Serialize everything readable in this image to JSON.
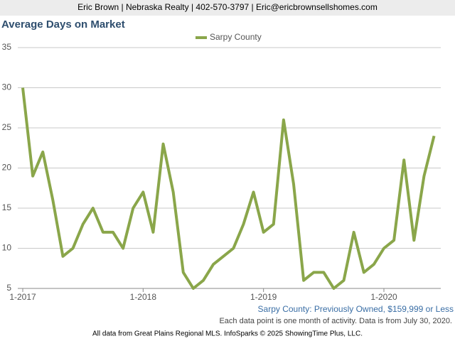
{
  "header": "Eric Brown | Nebraska Realty | 402-570-3797 | Eric@ericbrownsellshomes.com",
  "chart_data": {
    "type": "line",
    "title": "Average Days on Market",
    "subtitle": "Sarpy County: Previously Owned, $159,999 or Less",
    "note": "Each data point is one month of activity. Data is from July 30, 2020.",
    "categories": [
      "1-2017",
      null,
      null,
      null,
      null,
      null,
      null,
      null,
      null,
      null,
      null,
      null,
      "1-2018",
      null,
      null,
      null,
      null,
      null,
      null,
      null,
      null,
      null,
      null,
      null,
      "1-2019",
      null,
      null,
      null,
      null,
      null,
      null,
      null,
      null,
      null,
      null,
      null,
      "1-2020",
      null,
      null,
      null,
      null,
      null
    ],
    "series": [
      {
        "name": "Sarpy County",
        "color": "#8aa64a",
        "values": [
          30,
          19,
          22,
          16,
          9,
          10,
          13,
          15,
          12,
          12,
          10,
          15,
          17,
          12,
          23,
          17,
          7,
          5,
          6,
          8,
          9,
          10,
          13,
          17,
          12,
          13,
          26,
          18,
          6,
          7,
          7,
          5,
          6,
          12,
          7,
          8,
          10,
          11,
          21,
          11,
          19,
          24
        ]
      }
    ],
    "ylim": [
      5,
      35
    ],
    "yticks": [
      5,
      10,
      15,
      20,
      25,
      30,
      35
    ],
    "grid": true,
    "legend": "top"
  },
  "footer": "All data from Great Plains Regional MLS. InfoSparks © 2025 ShowingTime Plus, LLC."
}
